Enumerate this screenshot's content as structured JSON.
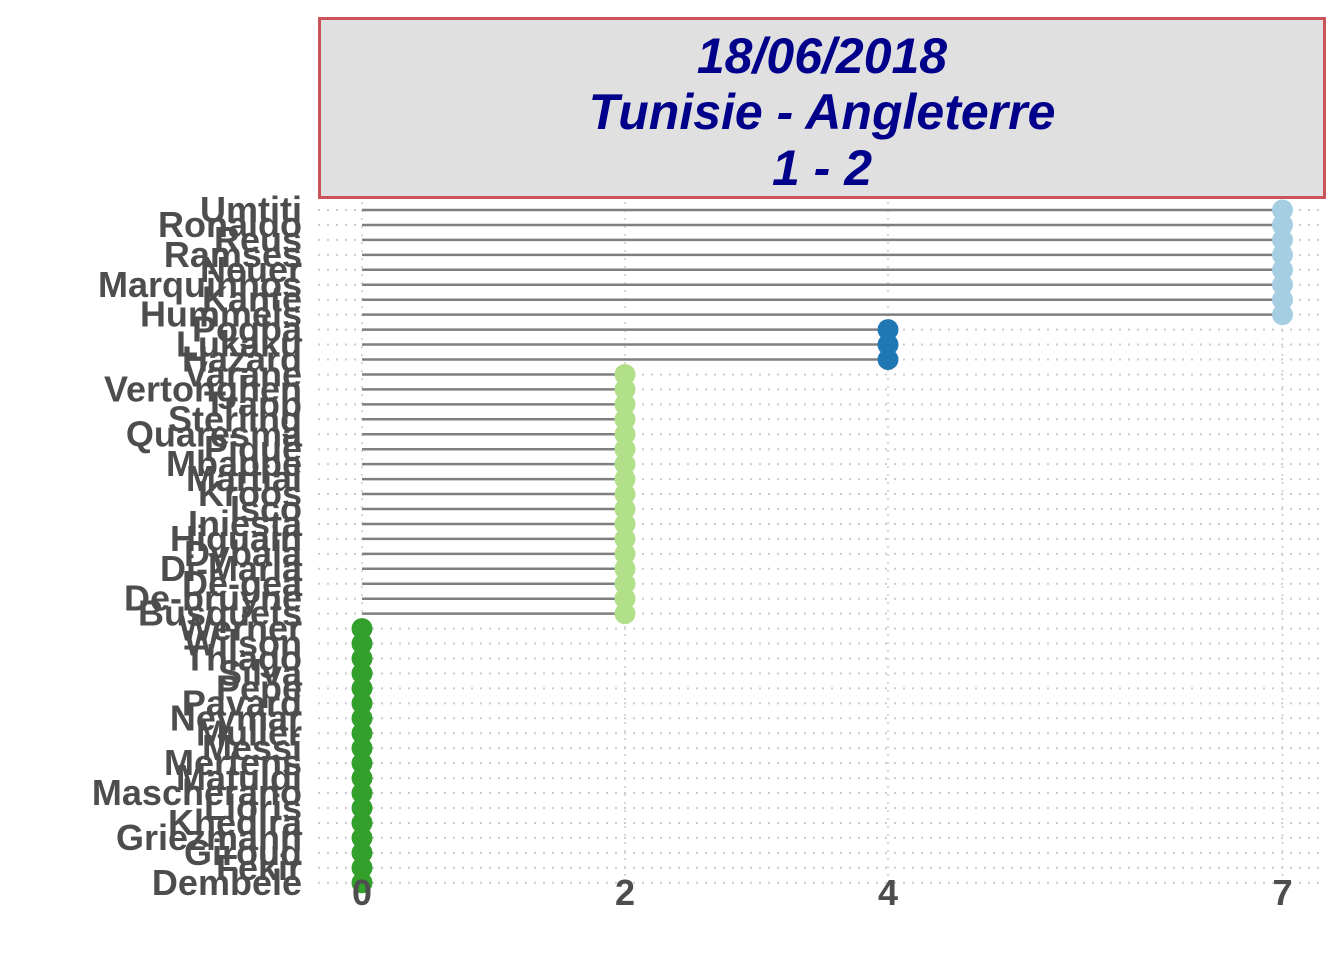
{
  "title": {
    "date": "18/06/2018",
    "match": "Tunisie - Angleterre",
    "score": "1 - 2"
  },
  "colors": {
    "panel_fill": "#e0e0e0",
    "panel_border": "#c8545a",
    "title_text": "#00008b",
    "segment": "#7f7f7f",
    "grid": "#cccccc",
    "label": "#4d4d4d",
    "group_colors": {
      "7": "#a6cee3",
      "4": "#1f78b4",
      "2": "#b2df8a",
      "0": "#33a02c"
    }
  },
  "chart_data": {
    "type": "lollipop",
    "orientation": "horizontal",
    "x_ticks": [
      0,
      2,
      4,
      7
    ],
    "xlim": [
      0,
      7
    ],
    "categories": [
      "Umtiti",
      "Ronaldo",
      "Reus",
      "Ramses",
      "Neuer",
      "Marquinhos",
      "Kante",
      "Hummels",
      "Pogba",
      "Lukaku",
      "Hazard",
      "Varane",
      "Vertonghen",
      "Trapp",
      "Sterling",
      "Quaresma",
      "Pique",
      "Mbappe",
      "Martial",
      "Kroos",
      "Isco",
      "Iniesta",
      "Higuain",
      "Dybala",
      "Di-Maria",
      "De-gea",
      "De-bruyne",
      "Busquets",
      "Werner",
      "Wilson",
      "Thiago",
      "Silva",
      "Pepe",
      "Pavard",
      "Neymar",
      "Muller",
      "Messi",
      "Mertens",
      "Matuidi",
      "Mascherano",
      "Lloris",
      "Khedira",
      "Griezmann",
      "Giroud",
      "Fekir",
      "Dembele"
    ],
    "values": [
      7,
      7,
      7,
      7,
      7,
      7,
      7,
      7,
      4,
      4,
      4,
      2,
      2,
      2,
      2,
      2,
      2,
      2,
      2,
      2,
      2,
      2,
      2,
      2,
      2,
      2,
      2,
      2,
      0,
      0,
      0,
      0,
      0,
      0,
      0,
      0,
      0,
      0,
      0,
      0,
      0,
      0,
      0,
      0,
      0,
      0
    ]
  }
}
